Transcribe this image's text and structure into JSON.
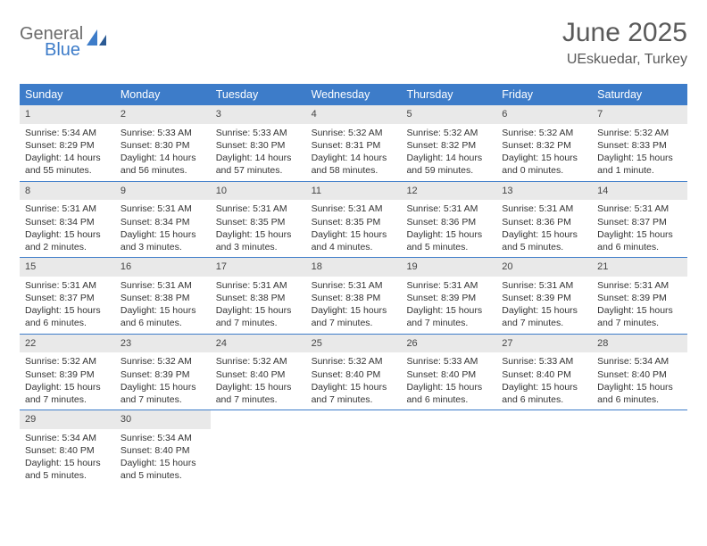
{
  "logo": {
    "line1": "General",
    "line2": "Blue"
  },
  "header": {
    "title": "June 2025",
    "location": "UEskuedar, Turkey"
  },
  "colors": {
    "header_bar": "#3d7cc9",
    "daynum_bg": "#e9e9e9",
    "week_border": "#3d7cc9",
    "text_gray": "#5a5a5a",
    "logo_gray": "#6b6b6b",
    "logo_blue": "#3d7cc9"
  },
  "weekdays": [
    "Sunday",
    "Monday",
    "Tuesday",
    "Wednesday",
    "Thursday",
    "Friday",
    "Saturday"
  ],
  "weeks": [
    [
      {
        "n": "1",
        "sunrise": "5:34 AM",
        "sunset": "8:29 PM",
        "daylight": "14 hours and 55 minutes."
      },
      {
        "n": "2",
        "sunrise": "5:33 AM",
        "sunset": "8:30 PM",
        "daylight": "14 hours and 56 minutes."
      },
      {
        "n": "3",
        "sunrise": "5:33 AM",
        "sunset": "8:30 PM",
        "daylight": "14 hours and 57 minutes."
      },
      {
        "n": "4",
        "sunrise": "5:32 AM",
        "sunset": "8:31 PM",
        "daylight": "14 hours and 58 minutes."
      },
      {
        "n": "5",
        "sunrise": "5:32 AM",
        "sunset": "8:32 PM",
        "daylight": "14 hours and 59 minutes."
      },
      {
        "n": "6",
        "sunrise": "5:32 AM",
        "sunset": "8:32 PM",
        "daylight": "15 hours and 0 minutes."
      },
      {
        "n": "7",
        "sunrise": "5:32 AM",
        "sunset": "8:33 PM",
        "daylight": "15 hours and 1 minute."
      }
    ],
    [
      {
        "n": "8",
        "sunrise": "5:31 AM",
        "sunset": "8:34 PM",
        "daylight": "15 hours and 2 minutes."
      },
      {
        "n": "9",
        "sunrise": "5:31 AM",
        "sunset": "8:34 PM",
        "daylight": "15 hours and 3 minutes."
      },
      {
        "n": "10",
        "sunrise": "5:31 AM",
        "sunset": "8:35 PM",
        "daylight": "15 hours and 3 minutes."
      },
      {
        "n": "11",
        "sunrise": "5:31 AM",
        "sunset": "8:35 PM",
        "daylight": "15 hours and 4 minutes."
      },
      {
        "n": "12",
        "sunrise": "5:31 AM",
        "sunset": "8:36 PM",
        "daylight": "15 hours and 5 minutes."
      },
      {
        "n": "13",
        "sunrise": "5:31 AM",
        "sunset": "8:36 PM",
        "daylight": "15 hours and 5 minutes."
      },
      {
        "n": "14",
        "sunrise": "5:31 AM",
        "sunset": "8:37 PM",
        "daylight": "15 hours and 6 minutes."
      }
    ],
    [
      {
        "n": "15",
        "sunrise": "5:31 AM",
        "sunset": "8:37 PM",
        "daylight": "15 hours and 6 minutes."
      },
      {
        "n": "16",
        "sunrise": "5:31 AM",
        "sunset": "8:38 PM",
        "daylight": "15 hours and 6 minutes."
      },
      {
        "n": "17",
        "sunrise": "5:31 AM",
        "sunset": "8:38 PM",
        "daylight": "15 hours and 7 minutes."
      },
      {
        "n": "18",
        "sunrise": "5:31 AM",
        "sunset": "8:38 PM",
        "daylight": "15 hours and 7 minutes."
      },
      {
        "n": "19",
        "sunrise": "5:31 AM",
        "sunset": "8:39 PM",
        "daylight": "15 hours and 7 minutes."
      },
      {
        "n": "20",
        "sunrise": "5:31 AM",
        "sunset": "8:39 PM",
        "daylight": "15 hours and 7 minutes."
      },
      {
        "n": "21",
        "sunrise": "5:31 AM",
        "sunset": "8:39 PM",
        "daylight": "15 hours and 7 minutes."
      }
    ],
    [
      {
        "n": "22",
        "sunrise": "5:32 AM",
        "sunset": "8:39 PM",
        "daylight": "15 hours and 7 minutes."
      },
      {
        "n": "23",
        "sunrise": "5:32 AM",
        "sunset": "8:39 PM",
        "daylight": "15 hours and 7 minutes."
      },
      {
        "n": "24",
        "sunrise": "5:32 AM",
        "sunset": "8:40 PM",
        "daylight": "15 hours and 7 minutes."
      },
      {
        "n": "25",
        "sunrise": "5:32 AM",
        "sunset": "8:40 PM",
        "daylight": "15 hours and 7 minutes."
      },
      {
        "n": "26",
        "sunrise": "5:33 AM",
        "sunset": "8:40 PM",
        "daylight": "15 hours and 6 minutes."
      },
      {
        "n": "27",
        "sunrise": "5:33 AM",
        "sunset": "8:40 PM",
        "daylight": "15 hours and 6 minutes."
      },
      {
        "n": "28",
        "sunrise": "5:34 AM",
        "sunset": "8:40 PM",
        "daylight": "15 hours and 6 minutes."
      }
    ],
    [
      {
        "n": "29",
        "sunrise": "5:34 AM",
        "sunset": "8:40 PM",
        "daylight": "15 hours and 5 minutes."
      },
      {
        "n": "30",
        "sunrise": "5:34 AM",
        "sunset": "8:40 PM",
        "daylight": "15 hours and 5 minutes."
      },
      null,
      null,
      null,
      null,
      null
    ]
  ],
  "labels": {
    "sunrise": "Sunrise:",
    "sunset": "Sunset:",
    "daylight": "Daylight:"
  }
}
